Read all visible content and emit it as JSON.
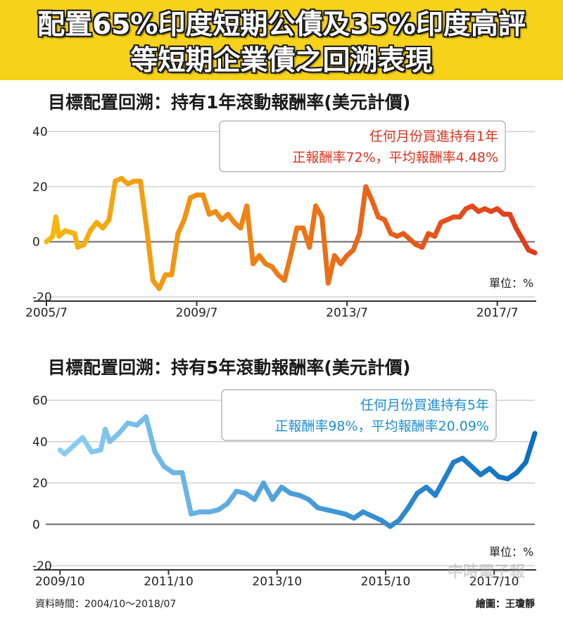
{
  "header": {
    "title_line1": "配置65%印度短期公債及35%印度高評",
    "title_line2": "等短期企業債之回溯表現"
  },
  "footer": {
    "source": "資料時間：2004/10～2018/07",
    "credit": "繪圖：王瓊靜",
    "watermark": "中時電子報"
  },
  "chart_data": [
    {
      "type": "line",
      "title": "目標配置回溯：持有1年滾動報酬率(美元計價)",
      "ylabel": "單位：%",
      "ylim": [
        -20,
        40
      ],
      "yticks": [
        "40",
        "20",
        "0",
        "-20"
      ],
      "xticks": [
        "2005/7",
        "2009/7",
        "2013/7",
        "2017/7"
      ],
      "x_range": [
        "2005/7",
        "2018/7"
      ],
      "annotation": [
        "任何月份買進持有1年",
        "正報酬率72%，平均報酬率4.48%"
      ],
      "color_start": "#f7b80f",
      "color_end": "#e13a1d",
      "annotation_color": "#e0311c",
      "grid": true,
      "series": [
        {
          "x": [
            "2005/7",
            "2005/9",
            "2005/10",
            "2005/11",
            "2006/1",
            "2006/4",
            "2006/5",
            "2006/7",
            "2006/9",
            "2006/11",
            "2007/1",
            "2007/3",
            "2007/5",
            "2007/7",
            "2007/9",
            "2007/11",
            "2008/1",
            "2008/3",
            "2008/5",
            "2008/7",
            "2008/9",
            "2008/11",
            "2009/1",
            "2009/3",
            "2009/5",
            "2009/7",
            "2009/9",
            "2009/11",
            "2010/1",
            "2010/3",
            "2010/5",
            "2010/7",
            "2010/9",
            "2010/11",
            "2011/1",
            "2011/3",
            "2011/5",
            "2011/7",
            "2011/9",
            "2011/11",
            "2012/1",
            "2012/3",
            "2012/5",
            "2012/7",
            "2012/9",
            "2012/11",
            "2013/1",
            "2013/3",
            "2013/5",
            "2013/7",
            "2013/9",
            "2013/11",
            "2014/1",
            "2014/3",
            "2014/5",
            "2014/7",
            "2014/9",
            "2014/11",
            "2015/1",
            "2015/3",
            "2015/5",
            "2015/7",
            "2015/9",
            "2015/11",
            "2016/1",
            "2016/3",
            "2016/5",
            "2016/7",
            "2016/9",
            "2016/11",
            "2017/1",
            "2017/3",
            "2017/5",
            "2017/7",
            "2017/9",
            "2017/11",
            "2018/1",
            "2018/3",
            "2018/5",
            "2018/7"
          ],
          "y": [
            0,
            2,
            9,
            2,
            4,
            3,
            -2,
            -1,
            4,
            7,
            5,
            8,
            22,
            23,
            21,
            22,
            22,
            5,
            -14,
            -17,
            -12,
            -12,
            3,
            8,
            16,
            17,
            17,
            10,
            11,
            8,
            10,
            7,
            5,
            13,
            -8,
            -5,
            -8,
            -9,
            -12,
            -14,
            -5,
            5,
            5,
            -2,
            13,
            9,
            -15,
            -5,
            -8,
            -5,
            -3,
            3,
            20,
            15,
            9,
            8,
            3,
            2,
            3,
            1,
            -1,
            -2,
            3,
            2,
            7,
            8,
            9,
            9,
            12,
            13,
            11,
            12,
            11,
            12,
            10,
            10,
            5,
            1,
            -3,
            -4
          ]
        }
      ]
    },
    {
      "type": "line",
      "title": "目標配置回溯：持有5年滾動報酬率(美元計價)",
      "ylabel": "單位：%",
      "ylim": [
        -20,
        60
      ],
      "yticks": [
        "60",
        "40",
        "20",
        "0",
        "-20"
      ],
      "xticks": [
        "2009/10",
        "2011/10",
        "2013/10",
        "2015/10",
        "2017/10"
      ],
      "x_range": [
        "2009/7",
        "2018/7"
      ],
      "annotation": [
        "任何月份買進持有5年",
        "正報酬率98%，平均報酬率20.09%"
      ],
      "color_start": "#8ecff0",
      "color_end": "#0b6fc2",
      "annotation_color": "#1b8ed6",
      "grid": true,
      "series": [
        {
          "x": [
            "2009/10",
            "2009/11",
            "2010/1",
            "2010/3",
            "2010/5",
            "2010/7",
            "2010/8",
            "2010/9",
            "2010/11",
            "2011/1",
            "2011/3",
            "2011/5",
            "2011/7",
            "2011/9",
            "2011/11",
            "2012/1",
            "2012/3",
            "2012/5",
            "2012/7",
            "2012/9",
            "2012/11",
            "2013/1",
            "2013/3",
            "2013/5",
            "2013/7",
            "2013/9",
            "2013/11",
            "2014/1",
            "2014/3",
            "2014/5",
            "2014/7",
            "2014/9",
            "2014/11",
            "2015/1",
            "2015/3",
            "2015/5",
            "2015/7",
            "2015/9",
            "2015/11",
            "2016/1",
            "2016/3",
            "2016/5",
            "2016/7",
            "2016/9",
            "2016/11",
            "2017/1",
            "2017/3",
            "2017/5",
            "2017/7",
            "2017/9",
            "2017/11",
            "2018/1",
            "2018/3",
            "2018/5",
            "2018/7"
          ],
          "y": [
            36,
            34,
            38,
            42,
            35,
            36,
            46,
            40,
            44,
            49,
            48,
            52,
            35,
            28,
            25,
            25,
            5,
            6,
            6,
            7,
            10,
            16,
            15,
            12,
            20,
            12,
            18,
            15,
            14,
            12,
            8,
            7,
            6,
            5,
            3,
            6,
            4,
            2,
            -1,
            2,
            8,
            15,
            18,
            14,
            22,
            30,
            32,
            28,
            24,
            27,
            23,
            22,
            25,
            30,
            44
          ]
        }
      ]
    }
  ]
}
